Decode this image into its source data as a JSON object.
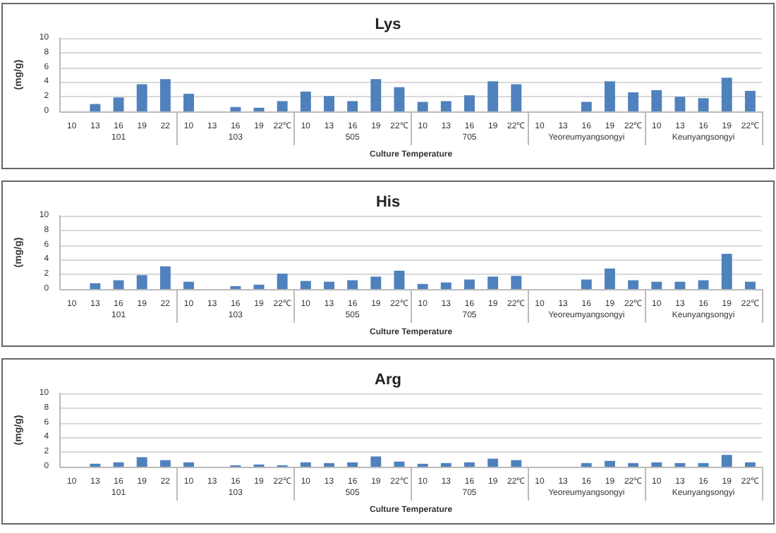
{
  "chart_data": [
    {
      "type": "bar",
      "title": "Lys",
      "xlabel": "Culture Temperature",
      "ylabel": "(mg/g)",
      "color": "#4f81bd",
      "categories": [
        "10",
        "13",
        "16",
        "19",
        "22",
        "10",
        "13",
        "16",
        "19",
        "22℃",
        "10",
        "13",
        "16",
        "19",
        "22℃",
        "10",
        "13",
        "16",
        "19",
        "22℃",
        "10",
        "13",
        "16",
        "19",
        "22℃",
        "10",
        "13",
        "16",
        "19",
        "22℃"
      ],
      "values": [
        null,
        1.0,
        1.9,
        3.7,
        4.4,
        2.4,
        null,
        0.6,
        0.5,
        1.4,
        2.7,
        2.1,
        1.4,
        4.4,
        3.3,
        1.3,
        1.4,
        2.2,
        4.1,
        3.7,
        null,
        null,
        1.3,
        4.1,
        2.6,
        2.9,
        2.0,
        1.8,
        4.6,
        2.8
      ],
      "annotations": [
        "101",
        "103",
        "505",
        "705",
        "Yeoreumyangsongyi",
        "Keunyangsongyi"
      ],
      "ylim": [
        0,
        10
      ],
      "yticks": [
        0,
        2,
        4,
        6,
        8,
        10
      ],
      "grid": "y"
    },
    {
      "type": "bar",
      "title": "His",
      "xlabel": "Culture Temperature",
      "ylabel": "(mg/g)",
      "color": "#4f81bd",
      "categories": [
        "10",
        "13",
        "16",
        "19",
        "22",
        "10",
        "13",
        "16",
        "19",
        "22℃",
        "10",
        "13",
        "16",
        "19",
        "22℃",
        "10",
        "13",
        "16",
        "19",
        "22℃",
        "10",
        "13",
        "16",
        "19",
        "22℃",
        "10",
        "13",
        "16",
        "19",
        "22℃"
      ],
      "values": [
        null,
        0.8,
        1.2,
        1.9,
        3.1,
        1.0,
        null,
        0.4,
        0.6,
        2.1,
        1.1,
        1.0,
        1.2,
        1.7,
        2.5,
        0.7,
        0.9,
        1.3,
        1.7,
        1.8,
        null,
        null,
        1.3,
        2.8,
        1.2,
        1.0,
        1.0,
        1.2,
        4.8,
        1.0
      ],
      "annotations": [
        "101",
        "103",
        "505",
        "705",
        "Yeoreumyangsongyi",
        "Keunyangsongyi"
      ],
      "ylim": [
        0,
        10
      ],
      "yticks": [
        0,
        2,
        4,
        6,
        8,
        10
      ],
      "grid": "y"
    },
    {
      "type": "bar",
      "title": "Arg",
      "xlabel": "Culture Temperature",
      "ylabel": "(mg/g)",
      "color": "#4f81bd",
      "categories": [
        "10",
        "13",
        "16",
        "19",
        "22",
        "10",
        "13",
        "16",
        "19",
        "22℃",
        "10",
        "13",
        "16",
        "19",
        "22℃",
        "10",
        "13",
        "16",
        "19",
        "22℃",
        "10",
        "13",
        "16",
        "19",
        "22℃",
        "10",
        "13",
        "16",
        "19",
        "22℃"
      ],
      "values": [
        null,
        0.4,
        0.6,
        1.3,
        0.9,
        0.6,
        null,
        0.2,
        0.3,
        0.2,
        0.6,
        0.5,
        0.6,
        1.4,
        0.7,
        0.4,
        0.5,
        0.6,
        1.1,
        0.9,
        null,
        null,
        0.5,
        0.8,
        0.5,
        0.6,
        0.5,
        0.5,
        1.6,
        0.6
      ],
      "annotations": [
        "101",
        "103",
        "505",
        "705",
        "Yeoreumyangsongyi",
        "Keunyangsongyi"
      ],
      "ylim": [
        0,
        10
      ],
      "yticks": [
        0,
        2,
        4,
        6,
        8,
        10
      ],
      "grid": "y"
    }
  ]
}
